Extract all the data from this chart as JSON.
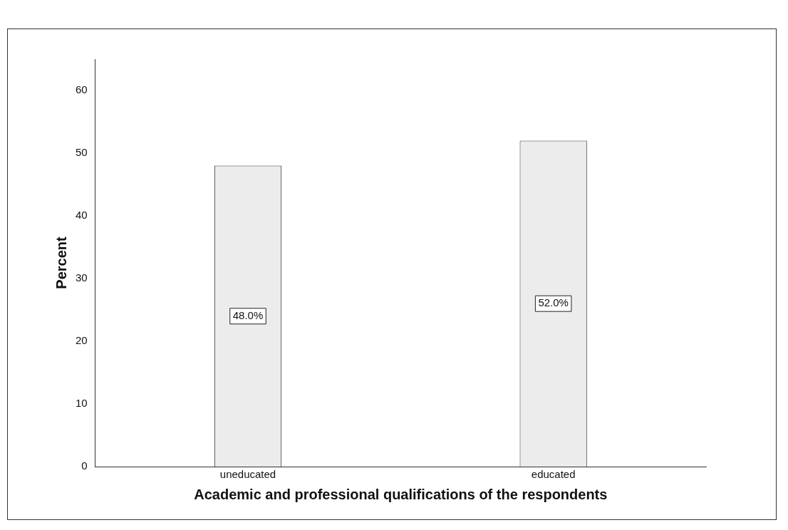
{
  "chart_data": {
    "type": "bar",
    "categories": [
      "uneducated",
      "educated"
    ],
    "values": [
      48.0,
      52.0
    ],
    "value_labels": [
      "48.0%",
      "52.0%"
    ],
    "color": "#ececec",
    "xlabel": "Academic and professional qualifications of the respondents",
    "ylabel": "Percent",
    "ylim": [
      0,
      65
    ],
    "yticks": [
      0,
      10,
      20,
      30,
      40,
      50,
      60
    ],
    "grid": false,
    "legend": false
  }
}
